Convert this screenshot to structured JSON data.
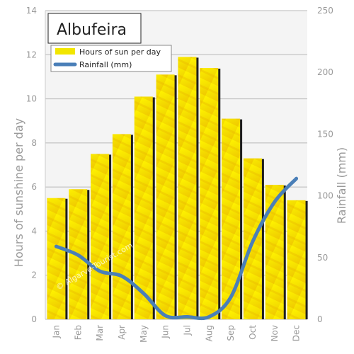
{
  "chart_data": {
    "type": "bar",
    "title": "Albufeira",
    "categories": [
      "Jan",
      "Feb",
      "Mar",
      "Apr",
      "May",
      "Jun",
      "Jul",
      "Aug",
      "Sep",
      "Oct",
      "Nov",
      "Dec"
    ],
    "series": [
      {
        "name": "Hours of sun per day",
        "type": "bar",
        "axis": "left",
        "values": [
          5.5,
          5.9,
          7.5,
          8.4,
          10.1,
          11.1,
          11.9,
          11.4,
          9.1,
          7.3,
          6.1,
          5.4
        ]
      },
      {
        "name": "Rainfall (mm)",
        "type": "line",
        "axis": "right",
        "values": [
          59,
          52,
          39,
          35,
          21,
          3,
          2,
          2,
          18,
          63,
          95,
          114
        ]
      }
    ],
    "ylabel": "Hours of sunshine per day",
    "y2label": "Rainfall (mm)",
    "ylim": [
      0,
      14
    ],
    "y2lim": [
      0,
      250
    ],
    "yticks": [
      "0",
      "2",
      "4",
      "6",
      "8",
      "10",
      "12",
      "14"
    ],
    "y2ticks": [
      "0",
      "50",
      "100",
      "150",
      "200",
      "250"
    ],
    "grid": true,
    "legend_position": "top-left",
    "watermark": "© Algarve-Tourist.com",
    "colors": {
      "bar": "#f2e600",
      "bar_shadow": "#1e1e1e",
      "line": "#4a7fb8",
      "plot_bg": "#f4f4f4",
      "grid": "#b8b8b8"
    }
  }
}
